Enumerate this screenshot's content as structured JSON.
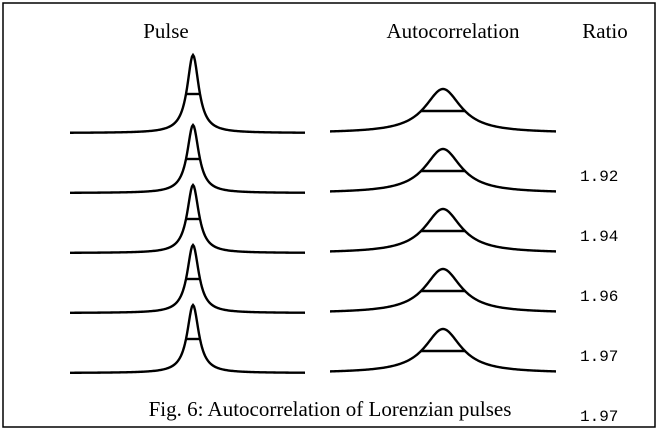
{
  "header": {
    "pulse": "Pulse",
    "autocorrelation": "Autocorrelation",
    "ratio": "Ratio"
  },
  "rows": [
    {
      "ratio": "1.92"
    },
    {
      "ratio": "1.94"
    },
    {
      "ratio": "1.96"
    },
    {
      "ratio": "1.97"
    },
    {
      "ratio": "1.97"
    }
  ],
  "caption": "Fig. 6: Autocorrelation of Lorenzian pulses"
}
